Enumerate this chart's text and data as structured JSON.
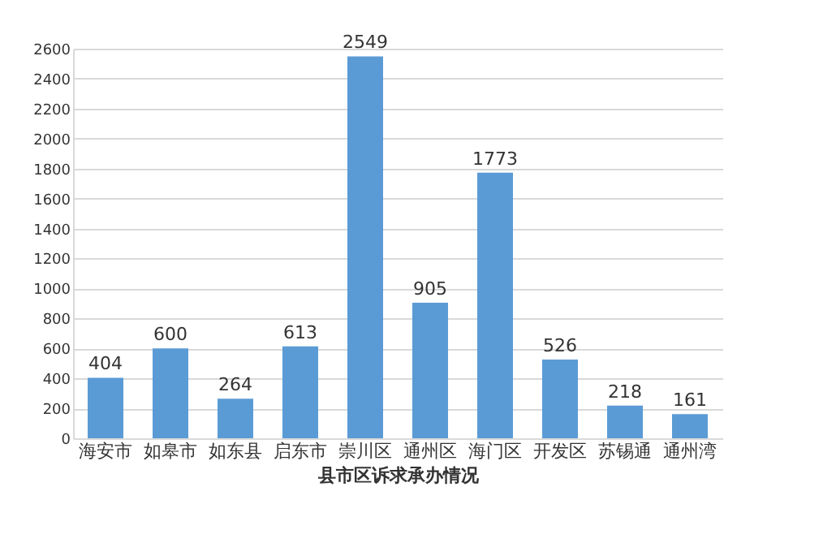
{
  "chart_data": {
    "type": "bar",
    "xlabel": "县市区诉求承办情况",
    "categories": [
      "海安市",
      "如皋市",
      "如东县",
      "启东市",
      "崇川区",
      "通州区",
      "海门区",
      "开发区",
      "苏锡通",
      "通州湾"
    ],
    "values": [
      404,
      600,
      264,
      613,
      2549,
      905,
      1773,
      526,
      218,
      161
    ],
    "color": "#5b9bd5",
    "ylim": [
      0,
      2600
    ],
    "yticks": [
      0,
      200,
      400,
      600,
      800,
      1000,
      1200,
      1400,
      1600,
      1800,
      2000,
      2200,
      2400,
      2600
    ],
    "grid": "y",
    "data_labels": true
  }
}
